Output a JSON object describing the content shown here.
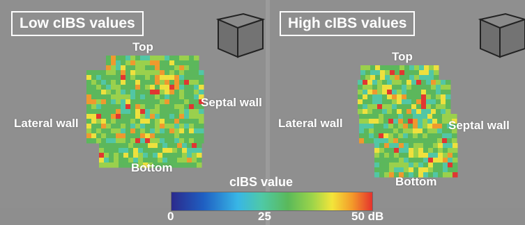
{
  "panels": [
    {
      "title": "Low cIBS values",
      "labels": {
        "top": "Top",
        "bottom": "Bottom",
        "lateral": "Lateral wall",
        "septal": "Septal wall"
      }
    },
    {
      "title": "High cIBS values",
      "labels": {
        "top": "Top",
        "bottom": "Bottom",
        "lateral": "Lateral wall",
        "septal": "Septal wall"
      }
    }
  ],
  "legend": {
    "title": "cIBS value",
    "ticks": [
      "0",
      "25",
      "50 dB"
    ],
    "colors": [
      "#2b2a8c",
      "#1f5fc2",
      "#38b6e6",
      "#4fc9a6",
      "#5ab95a",
      "#9bd44a",
      "#f3e53a",
      "#f39a2a",
      "#e5322d"
    ]
  }
}
